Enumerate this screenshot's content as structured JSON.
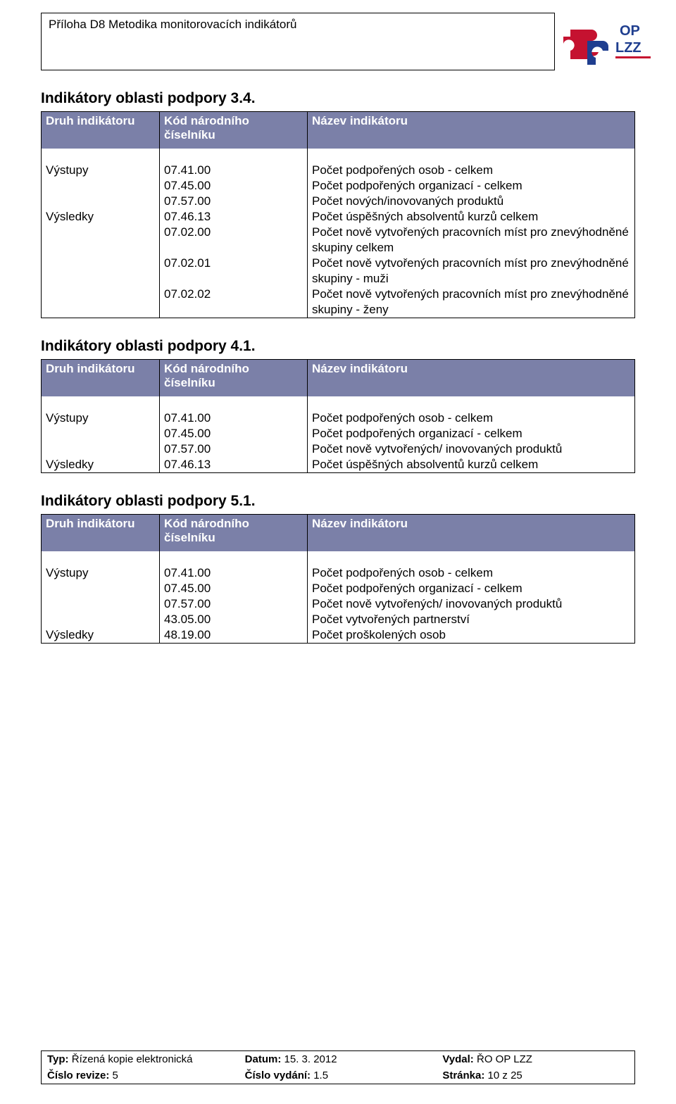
{
  "colors": {
    "header_bg": "#7b80a8",
    "header_fg": "#ffffff",
    "border": "#000000",
    "page_bg": "#ffffff",
    "text": "#000000",
    "logo_red": "#c51230",
    "logo_blue": "#1f3e8f"
  },
  "doc_header": "Příloha D8 Metodika monitorovacích indikátorů",
  "logo_text": "OP LZZ",
  "sections": [
    {
      "title": "Indikátory oblasti podpory 3.4.",
      "head": {
        "c1": "Druh indikátoru",
        "c2": "Kód národního číselníku",
        "c3": "Název indikátoru"
      },
      "rows": [
        {
          "c1": "Výstupy",
          "c2": "07.41.00",
          "c3": "Počet podpořených osob - celkem"
        },
        {
          "c1": "",
          "c2": "07.45.00",
          "c3": "Počet podpořených organizací - celkem"
        },
        {
          "c1": "",
          "c2": "07.57.00",
          "c3": "Počet nových/inovovaných produktů"
        },
        {
          "c1": "Výsledky",
          "c2": "07.46.13",
          "c3": "Počet úspěšných absolventů kurzů celkem"
        },
        {
          "c1": "",
          "c2": "07.02.00",
          "c3": "Počet nově vytvořených pracovních míst pro znevýhodněné skupiny celkem"
        },
        {
          "c1": "",
          "c2": "07.02.01",
          "c3": "Počet nově vytvořených pracovních míst pro znevýhodněné skupiny - muži"
        },
        {
          "c1": "",
          "c2": "07.02.02",
          "c3": "Počet nově vytvořených pracovních míst pro znevýhodněné skupiny - ženy"
        }
      ]
    },
    {
      "title": "Indikátory oblasti podpory 4.1.",
      "head": {
        "c1": "Druh indikátoru",
        "c2": "Kód národního číselníku",
        "c3": "Název indikátoru"
      },
      "rows": [
        {
          "c1": "Výstupy",
          "c2": "07.41.00",
          "c3": "Počet podpořených osob - celkem"
        },
        {
          "c1": "",
          "c2": "07.45.00",
          "c3": "Počet podpořených organizací - celkem"
        },
        {
          "c1": "",
          "c2": "07.57.00",
          "c3": "Počet nově vytvořených/ inovovaných produktů"
        },
        {
          "c1": "Výsledky",
          "c2": "07.46.13",
          "c3": "Počet úspěšných absolventů kurzů celkem"
        }
      ]
    },
    {
      "title": "Indikátory oblasti podpory 5.1.",
      "head": {
        "c1": "Druh indikátoru",
        "c2": "Kód národního číselníku",
        "c3": "Název indikátoru"
      },
      "rows": [
        {
          "c1": "Výstupy",
          "c2": "07.41.00",
          "c3": "Počet podpořených osob - celkem"
        },
        {
          "c1": "",
          "c2": "07.45.00",
          "c3": "Počet podpořených organizací - celkem"
        },
        {
          "c1": "",
          "c2": "07.57.00",
          "c3": "Počet nově vytvořených/ inovovaných produktů"
        },
        {
          "c1": "",
          "c2": "43.05.00",
          "c3": "Počet vytvořených partnerství"
        },
        {
          "c1": "Výsledky",
          "c2": "48.19.00",
          "c3": "Počet proškolených osob"
        }
      ]
    }
  ],
  "footer": {
    "r1": {
      "a_label": "Typ:",
      "a_val": "Řízená kopie elektronická",
      "b_label": "Datum:",
      "b_val": "15. 3. 2012",
      "c_label": "Vydal:",
      "c_val": "ŘO OP LZZ"
    },
    "r2": {
      "a_label": "Číslo revize:",
      "a_val": "5",
      "b_label": "Číslo vydání:",
      "b_val": "1.5",
      "c_label": "Stránka:",
      "c_val": "10 z 25"
    }
  }
}
